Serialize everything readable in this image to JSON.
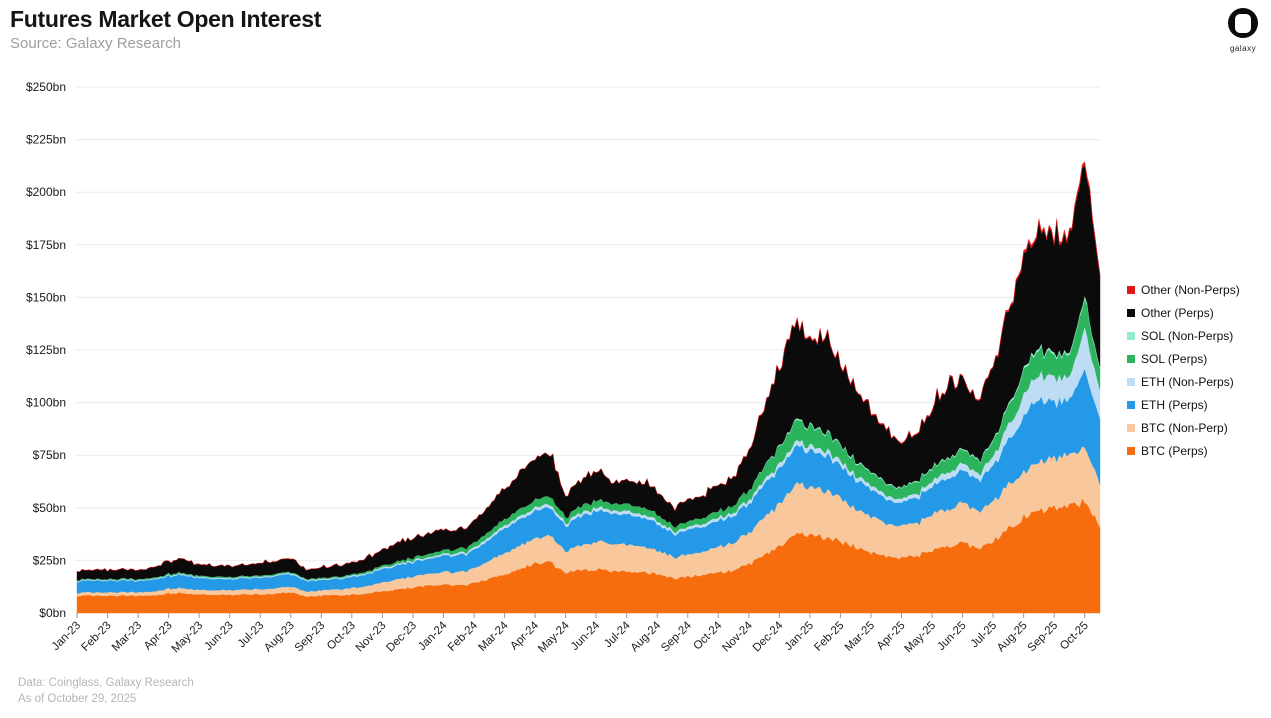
{
  "header": {
    "title": "Futures Market Open Interest",
    "source": "Source: Galaxy Research",
    "logo_text": "galaxy"
  },
  "footer": {
    "line1": "Data: Coinglass, Galaxy Research",
    "line2": "As of October 29, 2025"
  },
  "chart_data": {
    "type": "area",
    "stacked": true,
    "title": "Futures Market Open Interest",
    "xlabel": "",
    "ylabel": "",
    "ylim": [
      0,
      250
    ],
    "grid": "horizontal",
    "legend_position": "right",
    "y_ticks": [
      {
        "value": 0,
        "label": "$0bn"
      },
      {
        "value": 25,
        "label": "$25bn"
      },
      {
        "value": 50,
        "label": "$50bn"
      },
      {
        "value": 75,
        "label": "$75bn"
      },
      {
        "value": 100,
        "label": "$100bn"
      },
      {
        "value": 125,
        "label": "$125bn"
      },
      {
        "value": 150,
        "label": "$150bn"
      },
      {
        "value": 175,
        "label": "$175bn"
      },
      {
        "value": 200,
        "label": "$200bn"
      },
      {
        "value": 225,
        "label": "$225bn"
      },
      {
        "value": 250,
        "label": "$250bn"
      }
    ],
    "months": [
      "Jan-23",
      "Feb-23",
      "Mar-23",
      "Apr-23",
      "May-23",
      "Jun-23",
      "Jul-23",
      "Aug-23",
      "Sep-23",
      "Oct-23",
      "Nov-23",
      "Dec-23",
      "Jan-24",
      "Feb-24",
      "Mar-24",
      "Apr-24",
      "May-24",
      "Jun-24",
      "Jul-24",
      "Aug-24",
      "Sep-24",
      "Oct-24",
      "Nov-24",
      "Dec-24",
      "Jan-25",
      "Feb-25",
      "Mar-25",
      "Apr-25",
      "May-25",
      "Jun-25",
      "Jul-25",
      "Aug-25",
      "Sep-25",
      "Oct-25"
    ],
    "points_per_month": 2,
    "unit": "USD billions, open interest",
    "series": [
      {
        "name": "BTC (Perps)",
        "color": "#F76D0D",
        "values": [
          8.0,
          8.3,
          8.1,
          8.4,
          8.2,
          8.5,
          9.3,
          9.6,
          8.8,
          8.5,
          8.6,
          8.8,
          9.0,
          9.2,
          9.8,
          8.0,
          8.3,
          8.5,
          8.8,
          9.5,
          10.5,
          11.2,
          12.0,
          13.0,
          13.5,
          13.0,
          14.0,
          16.0,
          18.5,
          21.0,
          23.5,
          24.0,
          19.0,
          20.5,
          21.0,
          20.0,
          20.0,
          19.5,
          18.5,
          16.5,
          17.5,
          18.0,
          19.0,
          20.5,
          23.0,
          27.0,
          32.0,
          38.0,
          37.0,
          36.0,
          34.0,
          31.5,
          29.0,
          27.5,
          26.0,
          27.0,
          30.0,
          32.0,
          33.0,
          31.0,
          34.0,
          40.0,
          46.0,
          48.0,
          50.0,
          51.0,
          53.0,
          42.0
        ]
      },
      {
        "name": "BTC (Non-Perp)",
        "color": "#F8C89C",
        "values": [
          1.5,
          1.6,
          1.6,
          1.7,
          1.7,
          1.8,
          2.3,
          2.4,
          2.1,
          2.2,
          2.3,
          2.4,
          2.5,
          2.6,
          2.8,
          2.4,
          2.5,
          2.7,
          3.2,
          3.6,
          4.2,
          4.8,
          5.2,
          5.6,
          6.0,
          6.2,
          7.0,
          8.5,
          10.0,
          11.5,
          12.0,
          12.5,
          10.5,
          11.5,
          13.5,
          13.0,
          13.0,
          12.5,
          11.5,
          10.0,
          10.5,
          11.0,
          12.0,
          13.0,
          15.0,
          17.5,
          20.0,
          23.0,
          23.0,
          22.0,
          20.5,
          18.5,
          17.0,
          16.0,
          15.0,
          15.5,
          17.0,
          18.0,
          18.5,
          18.0,
          19.0,
          20.5,
          22.0,
          23.0,
          24.0,
          24.5,
          26.0,
          20.0
        ]
      },
      {
        "name": "ETH (Perps)",
        "color": "#2499E8",
        "values": [
          5.5,
          5.6,
          5.4,
          5.6,
          5.3,
          5.5,
          6.0,
          6.2,
          5.6,
          5.4,
          5.3,
          5.4,
          5.5,
          5.6,
          5.9,
          5.0,
          4.9,
          5.0,
          5.2,
          5.6,
          6.2,
          6.6,
          6.8,
          7.2,
          7.5,
          7.8,
          8.5,
          10.0,
          11.5,
          12.5,
          13.0,
          13.5,
          12.0,
          13.5,
          15.0,
          14.0,
          14.5,
          13.5,
          13.0,
          11.0,
          11.5,
          12.0,
          12.5,
          13.0,
          14.0,
          15.5,
          16.5,
          17.5,
          17.0,
          16.5,
          15.5,
          14.0,
          12.5,
          11.5,
          11.0,
          12.0,
          13.5,
          14.5,
          15.0,
          14.5,
          17.0,
          21.0,
          27.0,
          30.0,
          27.0,
          26.0,
          36.0,
          30.0
        ]
      },
      {
        "name": "ETH (Non-Perps)",
        "color": "#BFDCF5",
        "values": [
          0.4,
          0.4,
          0.4,
          0.4,
          0.4,
          0.4,
          0.5,
          0.5,
          0.5,
          0.5,
          0.5,
          0.5,
          0.5,
          0.5,
          0.6,
          0.5,
          0.5,
          0.5,
          0.6,
          0.6,
          0.7,
          0.7,
          0.8,
          0.8,
          0.9,
          1.0,
          1.1,
          1.3,
          1.4,
          1.5,
          1.5,
          1.6,
          1.4,
          1.5,
          1.6,
          1.5,
          1.6,
          1.5,
          1.4,
          1.2,
          1.3,
          1.4,
          1.5,
          1.6,
          1.8,
          2.0,
          2.2,
          2.4,
          2.4,
          2.3,
          2.2,
          2.0,
          1.9,
          1.8,
          1.8,
          2.0,
          2.5,
          3.0,
          3.2,
          3.0,
          4.5,
          7.0,
          10.0,
          12.0,
          12.0,
          11.0,
          20.0,
          13.0
        ]
      },
      {
        "name": "SOL (Perps)",
        "color": "#2CB45D",
        "values": [
          0.3,
          0.3,
          0.3,
          0.4,
          0.4,
          0.4,
          0.5,
          0.5,
          0.5,
          0.5,
          0.5,
          0.5,
          0.5,
          0.5,
          0.5,
          0.4,
          0.5,
          0.5,
          0.6,
          0.7,
          0.9,
          1.1,
          1.3,
          1.5,
          1.7,
          1.9,
          2.2,
          2.6,
          3.0,
          3.3,
          3.5,
          3.6,
          2.8,
          3.2,
          3.5,
          3.2,
          3.4,
          3.2,
          3.0,
          2.5,
          2.7,
          2.9,
          3.0,
          3.5,
          4.5,
          6.5,
          8.0,
          9.5,
          9.0,
          8.5,
          7.5,
          6.5,
          6.0,
          5.5,
          5.0,
          5.5,
          6.0,
          6.5,
          6.5,
          6.0,
          7.0,
          9.0,
          11.0,
          11.5,
          10.5,
          10.0,
          14.0,
          10.0
        ]
      },
      {
        "name": "SOL (Non-Perps)",
        "color": "#90EBC6",
        "values": [
          0.05,
          0.05,
          0.05,
          0.05,
          0.05,
          0.05,
          0.05,
          0.05,
          0.05,
          0.05,
          0.05,
          0.05,
          0.05,
          0.05,
          0.05,
          0.05,
          0.05,
          0.05,
          0.05,
          0.05,
          0.05,
          0.05,
          0.05,
          0.05,
          0.05,
          0.05,
          0.05,
          0.05,
          0.05,
          0.05,
          0.05,
          0.05,
          0.05,
          0.05,
          0.05,
          0.05,
          0.05,
          0.05,
          0.05,
          0.05,
          0.05,
          0.05,
          0.05,
          0.05,
          0.2,
          0.3,
          0.5,
          0.7,
          0.7,
          0.7,
          0.6,
          0.6,
          0.5,
          0.5,
          0.5,
          0.5,
          0.6,
          0.6,
          0.6,
          0.6,
          0.7,
          0.9,
          1.0,
          1.1,
          1.0,
          1.0,
          1.5,
          1.0
        ]
      },
      {
        "name": "Other (Perps)",
        "color": "#0B0B0B",
        "values": [
          4.0,
          4.3,
          4.1,
          4.4,
          4.2,
          4.5,
          6.0,
          6.3,
          5.2,
          5.0,
          5.2,
          5.4,
          5.6,
          5.8,
          6.5,
          4.2,
          4.7,
          5.0,
          5.6,
          6.5,
          7.5,
          8.5,
          9.0,
          9.5,
          9.5,
          9.0,
          10.0,
          12.5,
          15.0,
          17.5,
          19.5,
          20.0,
          9.5,
          12.0,
          15.0,
          10.5,
          11.0,
          11.5,
          11.0,
          8.5,
          10.0,
          10.5,
          11.5,
          13.5,
          18.0,
          28.0,
          38.0,
          46.0,
          42.0,
          44.0,
          40.0,
          33.0,
          28.0,
          24.0,
          21.0,
          23.0,
          28.0,
          31.0,
          32.0,
          28.0,
          33.0,
          44.0,
          52.0,
          56.0,
          52.0,
          55.0,
          64.0,
          45.0
        ]
      },
      {
        "name": "Other (Non-Perps)",
        "color": "#E11717",
        "values": [
          0.1,
          0.1,
          0.1,
          0.1,
          0.1,
          0.1,
          0.1,
          0.1,
          0.1,
          0.1,
          0.1,
          0.1,
          0.1,
          0.1,
          0.1,
          0.1,
          0.1,
          0.1,
          0.1,
          0.1,
          0.1,
          0.1,
          0.1,
          0.1,
          0.1,
          0.1,
          0.1,
          0.1,
          0.1,
          0.1,
          0.1,
          0.1,
          0.1,
          0.1,
          0.1,
          0.1,
          0.1,
          0.1,
          0.1,
          0.1,
          0.1,
          0.1,
          0.1,
          0.1,
          0.2,
          0.3,
          0.4,
          0.5,
          0.5,
          0.5,
          0.5,
          0.4,
          0.4,
          0.4,
          0.4,
          0.4,
          0.4,
          0.4,
          0.4,
          0.4,
          0.6,
          0.9,
          1.2,
          1.3,
          1.2,
          1.3,
          1.8,
          1.2
        ]
      }
    ]
  }
}
